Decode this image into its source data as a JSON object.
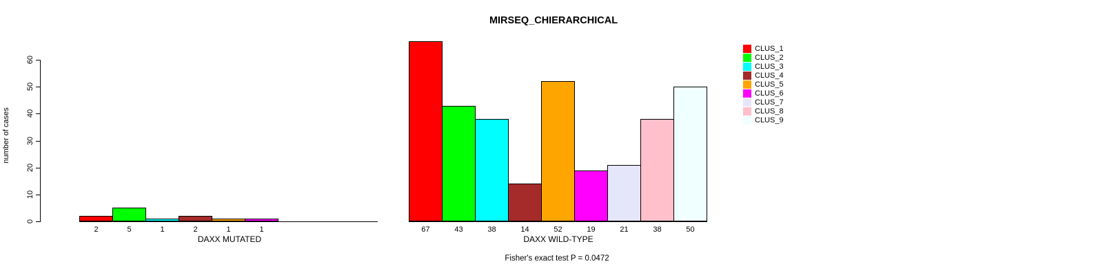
{
  "chart_data": {
    "type": "bar",
    "title": "MIRSEQ_CHIERARCHICAL",
    "ylabel": "number of cases",
    "ylim": [
      0,
      60
    ],
    "yticks": [
      0,
      10,
      20,
      30,
      40,
      50,
      60
    ],
    "grid": false,
    "legend_position": "right",
    "legend_entries": [
      {
        "label": "CLUS_1",
        "color": "#FF0000"
      },
      {
        "label": "CLUS_2",
        "color": "#00FF00"
      },
      {
        "label": "CLUS_3",
        "color": "#00FFFF"
      },
      {
        "label": "CLUS_4",
        "color": "#A52A2A"
      },
      {
        "label": "CLUS_5",
        "color": "#FFA500"
      },
      {
        "label": "CLUS_6",
        "color": "#FF00FF"
      },
      {
        "label": "CLUS_7",
        "color": "#E6E6FA"
      },
      {
        "label": "CLUS_8",
        "color": "#FFC0CB"
      },
      {
        "label": "CLUS_9",
        "color": "#F0FFFF"
      }
    ],
    "colors": [
      "#FF0000",
      "#00FF00",
      "#00FFFF",
      "#A52A2A",
      "#FFA500",
      "#FF00FF",
      "#E6E6FA",
      "#FFC0CB",
      "#F0FFFF"
    ],
    "groups": [
      {
        "xlabel": "DAXX MUTATED",
        "categories": [
          "CLUS_1",
          "CLUS_2",
          "CLUS_3",
          "CLUS_4",
          "CLUS_5",
          "CLUS_6",
          "CLUS_7",
          "CLUS_8",
          "CLUS_9"
        ],
        "values": [
          2,
          5,
          1,
          2,
          1,
          1,
          0,
          0,
          0
        ],
        "bar_labels": [
          "2",
          "5",
          "1",
          "2",
          "1",
          "1",
          "",
          "",
          ""
        ]
      },
      {
        "xlabel": "DAXX WILD-TYPE",
        "categories": [
          "CLUS_1",
          "CLUS_2",
          "CLUS_3",
          "CLUS_4",
          "CLUS_5",
          "CLUS_6",
          "CLUS_7",
          "CLUS_8",
          "CLUS_9"
        ],
        "values": [
          67,
          43,
          38,
          14,
          52,
          19,
          21,
          38,
          50
        ],
        "bar_labels": [
          "67",
          "43",
          "38",
          "14",
          "52",
          "19",
          "21",
          "38",
          "50"
        ]
      }
    ],
    "footnote": "Fisher's exact test P = 0.0472",
    "axis_color": "#000000",
    "background_color": "#FFFFFF"
  }
}
